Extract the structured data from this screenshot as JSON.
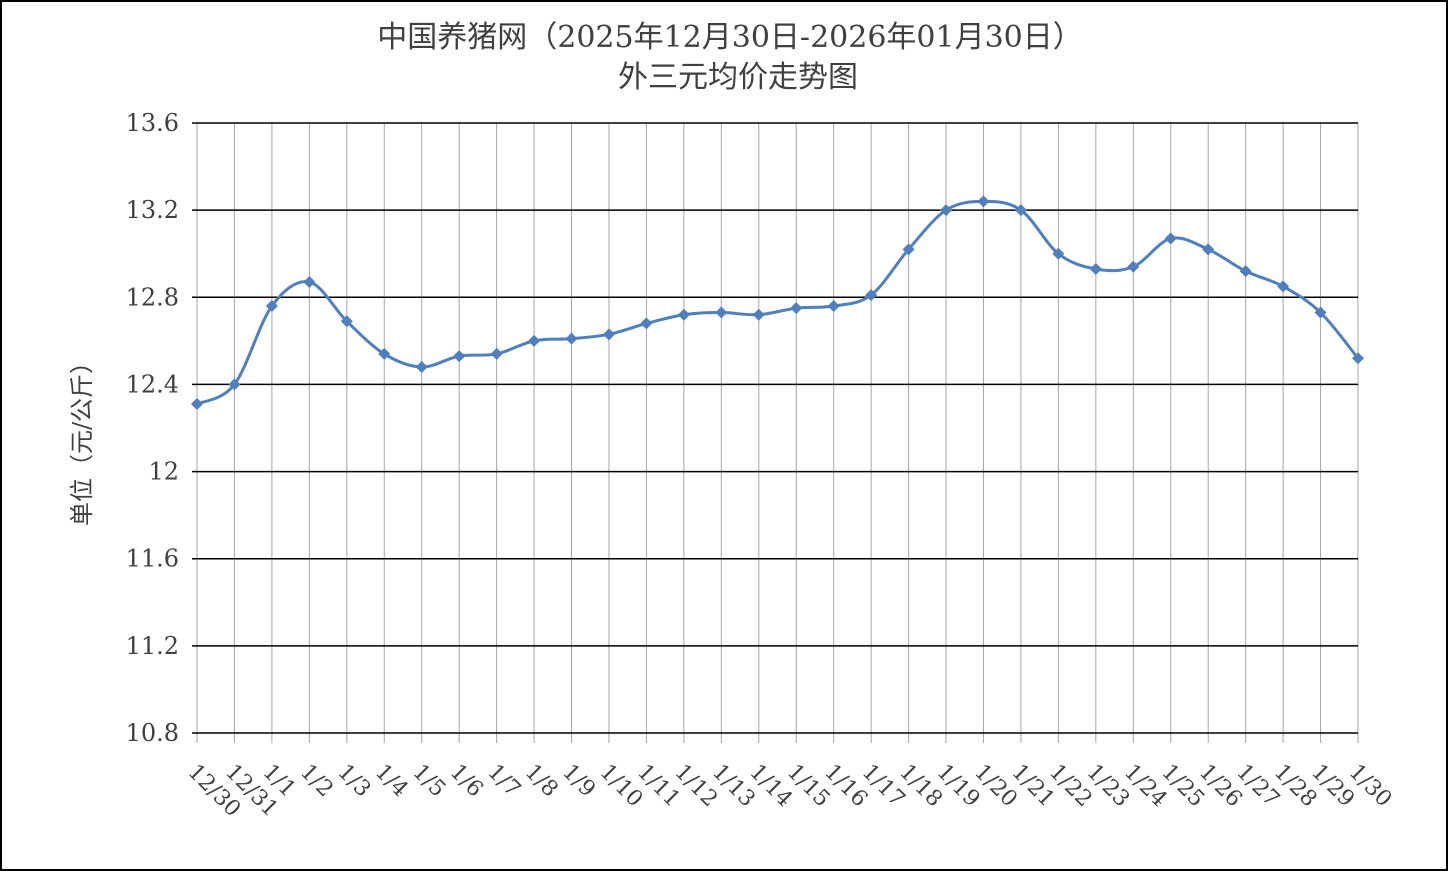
{
  "chart_data": {
    "type": "line",
    "title": "中国养猪网（2025年12月30日-2026年01月30日）",
    "subtitle": "外三元均价走势图",
    "y_label": "单位（元/公斤）",
    "categories": [
      "12/30",
      "12/31",
      "1/1",
      "1/2",
      "1/3",
      "1/4",
      "1/5",
      "1/6",
      "1/7",
      "1/8",
      "1/9",
      "1/10",
      "1/11",
      "1/12",
      "1/13",
      "1/14",
      "1/15",
      "1/16",
      "1/17",
      "1/18",
      "1/19",
      "1/20",
      "1/21",
      "1/22",
      "1/23",
      "1/24",
      "1/25",
      "1/26",
      "1/27",
      "1/28",
      "1/29",
      "1/30"
    ],
    "series": [
      {
        "name": "外三元均价",
        "color": "#4f7fbc",
        "values": [
          12.31,
          12.4,
          12.76,
          12.87,
          12.69,
          12.54,
          12.48,
          12.53,
          12.54,
          12.6,
          12.61,
          12.63,
          12.68,
          12.72,
          12.73,
          12.72,
          12.75,
          12.76,
          12.81,
          13.02,
          13.2,
          13.24,
          13.2,
          13.0,
          12.93,
          12.94,
          13.07,
          13.02,
          12.92,
          12.85,
          12.73,
          12.52
        ]
      }
    ],
    "ylim": [
      10.8,
      13.6
    ],
    "yticks": [
      10.8,
      11.2,
      11.6,
      12,
      12.4,
      12.8,
      13.2,
      13.6
    ],
    "grid": true
  }
}
